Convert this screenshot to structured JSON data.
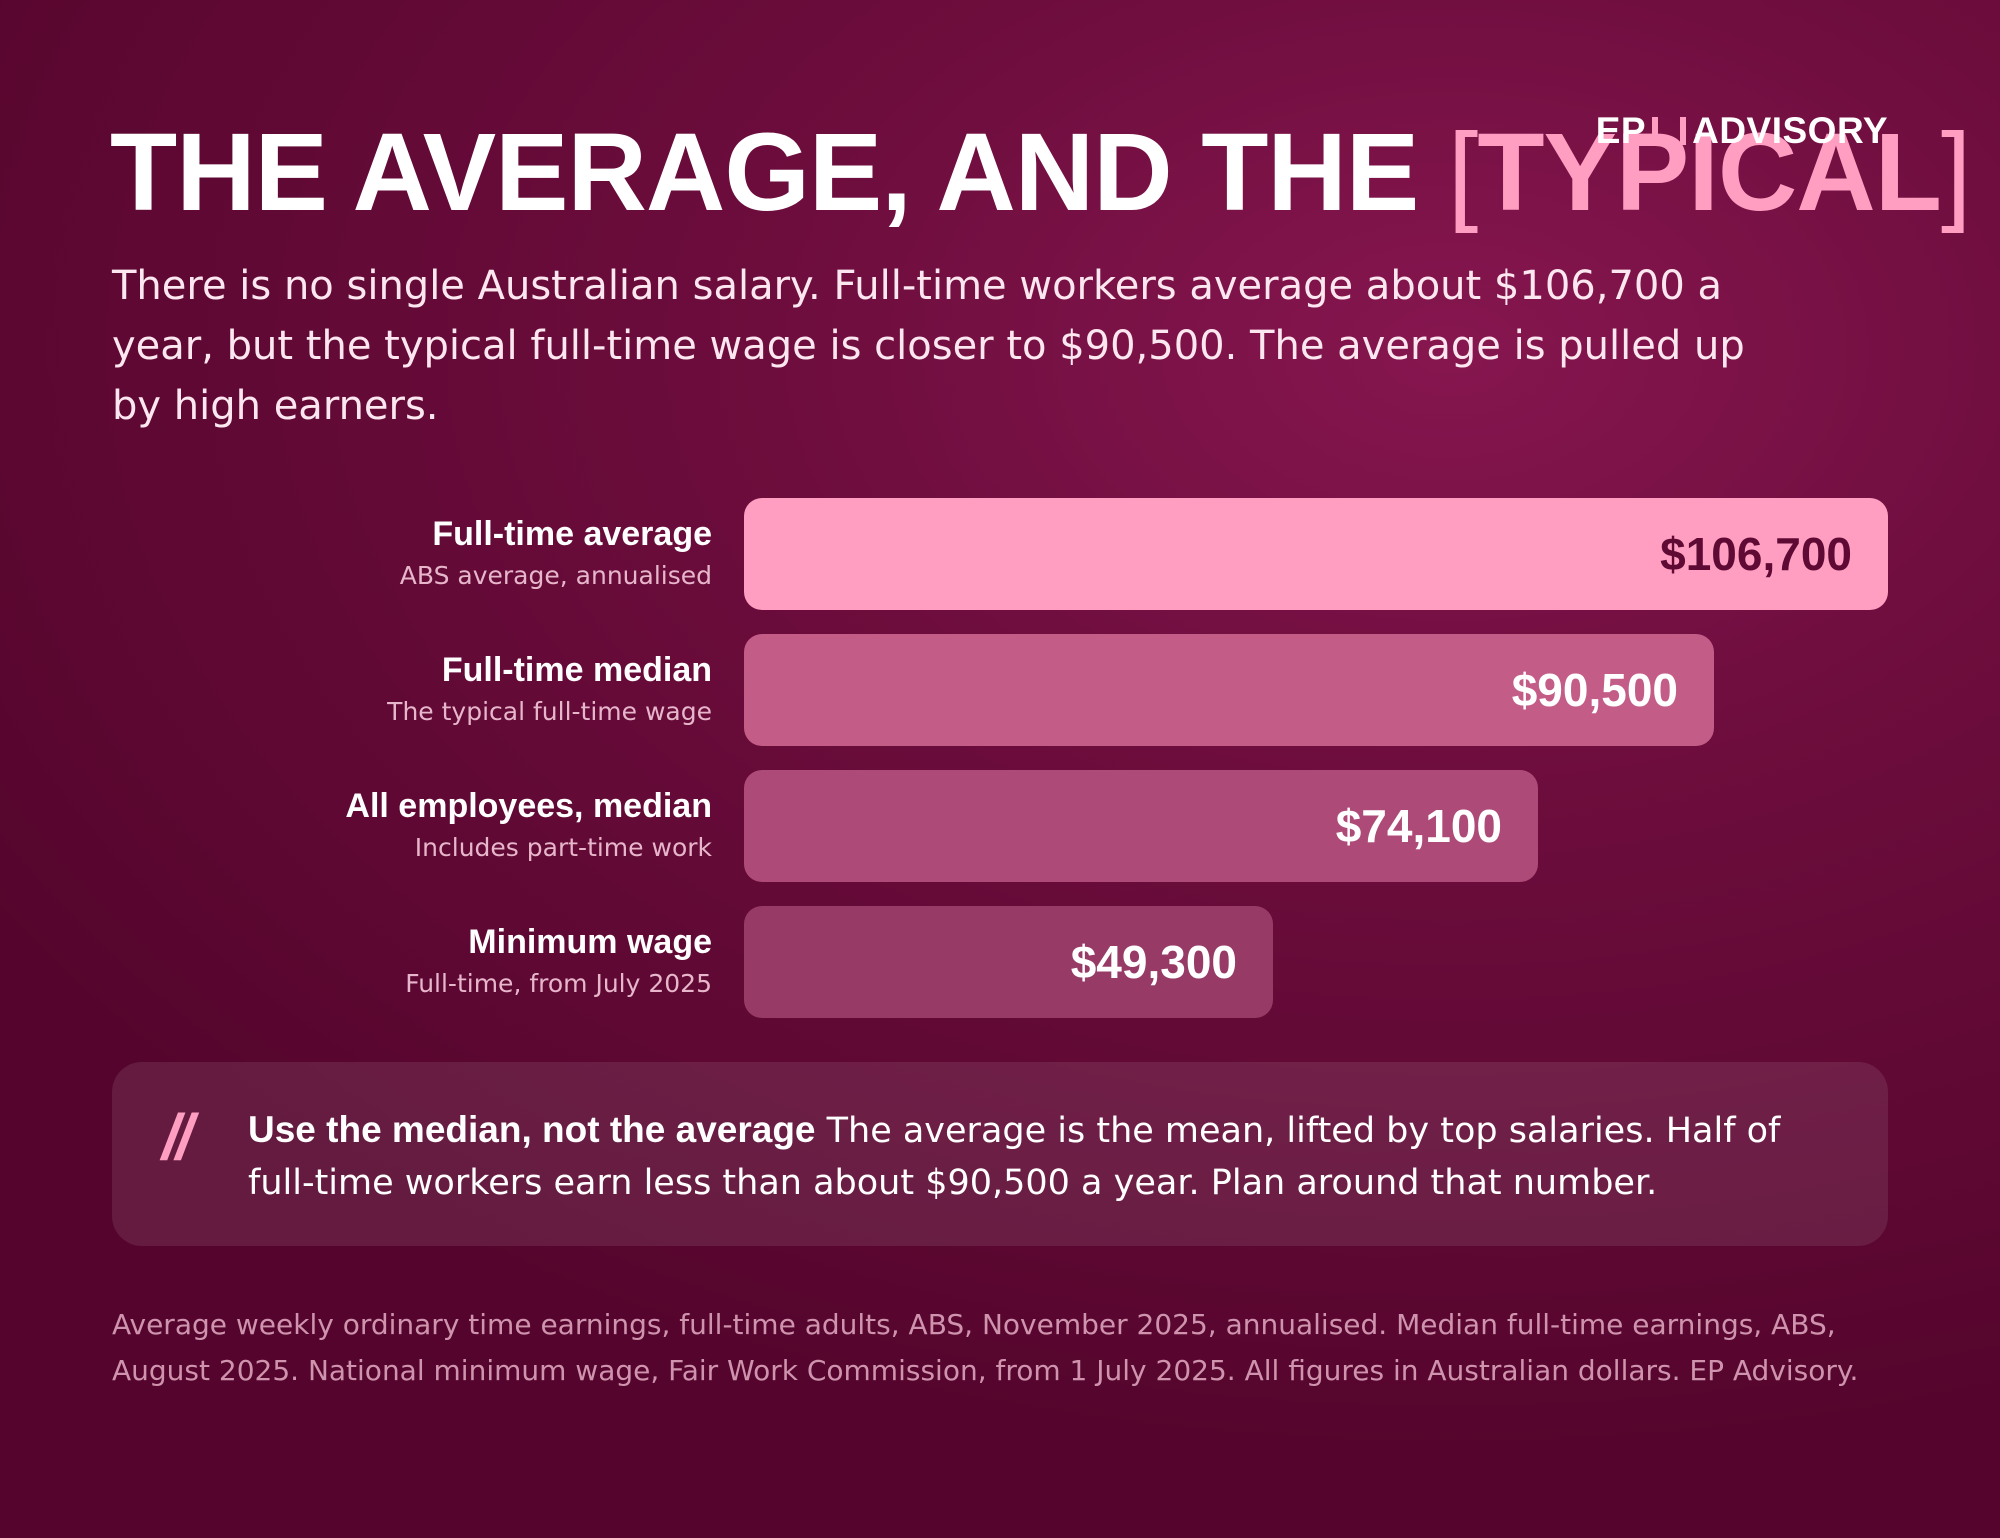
{
  "brand": {
    "left": "EP",
    "right": "ADVISORY"
  },
  "headline": {
    "main": "THE AVERAGE, AND THE",
    "bracket_open": "[",
    "highlight": "TYPICAL",
    "bracket_close": "]"
  },
  "intro": "There is no single Australian salary. Full-time workers average about $106,700 a year, but the typical full-time wage is closer to $90,500. The average is pulled up by high earners.",
  "colors": {
    "accent": "#ff9ec0",
    "background": "#6d0d3d",
    "bar_value_dark": "#5e0a34"
  },
  "chart_data": {
    "type": "bar",
    "orientation": "horizontal",
    "categories": [
      "Full-time average",
      "Full-time median",
      "All employees, median",
      "Minimum wage"
    ],
    "subtitles": [
      "ABS average, annualised",
      "The typical full-time wage",
      "Includes part-time work",
      "Full-time, from July 2025"
    ],
    "values": [
      106700,
      90500,
      74100,
      49300
    ],
    "value_labels": [
      "$106,700",
      "$90,500",
      "$74,100",
      "$49,300"
    ],
    "bar_colors": [
      "#ff9ec0",
      "#c45c88",
      "#ae4a77",
      "#973a66"
    ],
    "value_colors": [
      "#5e0a34",
      "#ffffff",
      "#ffffff",
      "#ffffff"
    ],
    "xlim": [
      0,
      106700
    ],
    "grid": false
  },
  "callout": {
    "mark": "//",
    "lead": "Use the median, not the average",
    "body": " The average is the mean, lifted by top salaries. Half of full-time workers earn less than about $90,500 a year. Plan around that number."
  },
  "source": "Average weekly ordinary time earnings, full-time adults, ABS, November 2025, annualised. Median full-time earnings, ABS, August 2025. National minimum wage, Fair Work Commission, from 1 July 2025. All figures in Australian dollars. EP Advisory."
}
